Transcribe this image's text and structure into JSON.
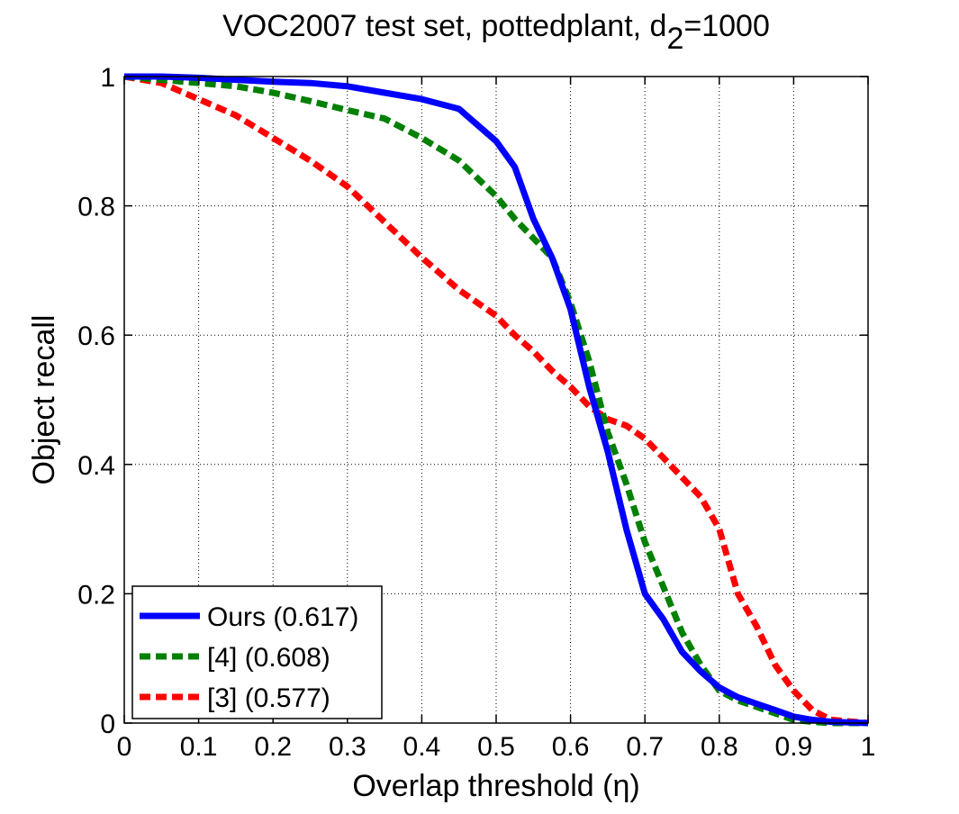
{
  "chart_data": {
    "type": "line",
    "title_prefix": "VOC2007 test set, pottedplant, d",
    "title_subscript": "2",
    "title_suffix": "=1000",
    "xlabel": "Overlap threshold (η)",
    "ylabel": "Object recall",
    "xlim": [
      0,
      1
    ],
    "ylim": [
      0,
      1
    ],
    "xticks": [
      "0",
      "0.1",
      "0.2",
      "0.3",
      "0.4",
      "0.5",
      "0.6",
      "0.7",
      "0.8",
      "0.9",
      "1"
    ],
    "yticks": [
      "0",
      "0.2",
      "0.4",
      "0.6",
      "0.8",
      "1"
    ],
    "grid": true,
    "legend_position": "bottom-left",
    "x": [
      0,
      0.05,
      0.1,
      0.15,
      0.2,
      0.25,
      0.3,
      0.35,
      0.4,
      0.45,
      0.5,
      0.525,
      0.55,
      0.575,
      0.6,
      0.625,
      0.65,
      0.675,
      0.7,
      0.725,
      0.75,
      0.775,
      0.8,
      0.825,
      0.85,
      0.875,
      0.9,
      0.925,
      0.95,
      1.0
    ],
    "series": [
      {
        "name": "Ours (0.617)",
        "color": "#0000ff",
        "dash": "solid",
        "values": [
          1.0,
          1.0,
          0.998,
          0.995,
          0.992,
          0.99,
          0.985,
          0.975,
          0.965,
          0.95,
          0.9,
          0.86,
          0.78,
          0.72,
          0.64,
          0.52,
          0.42,
          0.3,
          0.2,
          0.16,
          0.11,
          0.08,
          0.055,
          0.04,
          0.03,
          0.02,
          0.01,
          0.005,
          0.002,
          0.0
        ]
      },
      {
        "name": "[4] (0.608)",
        "color": "#008000",
        "dash": "dashed",
        "values": [
          1.0,
          0.995,
          0.99,
          0.985,
          0.975,
          0.962,
          0.948,
          0.935,
          0.905,
          0.87,
          0.815,
          0.78,
          0.75,
          0.72,
          0.65,
          0.56,
          0.45,
          0.37,
          0.28,
          0.21,
          0.14,
          0.09,
          0.05,
          0.035,
          0.025,
          0.015,
          0.005,
          0.002,
          0.0,
          0.0
        ]
      },
      {
        "name": "[3] (0.577)",
        "color": "#ff0000",
        "dash": "dashed",
        "values": [
          1.0,
          0.99,
          0.965,
          0.94,
          0.905,
          0.87,
          0.83,
          0.775,
          0.72,
          0.67,
          0.63,
          0.6,
          0.575,
          0.545,
          0.52,
          0.49,
          0.47,
          0.46,
          0.44,
          0.41,
          0.38,
          0.35,
          0.3,
          0.2,
          0.15,
          0.09,
          0.05,
          0.02,
          0.005,
          0.0
        ]
      }
    ]
  }
}
